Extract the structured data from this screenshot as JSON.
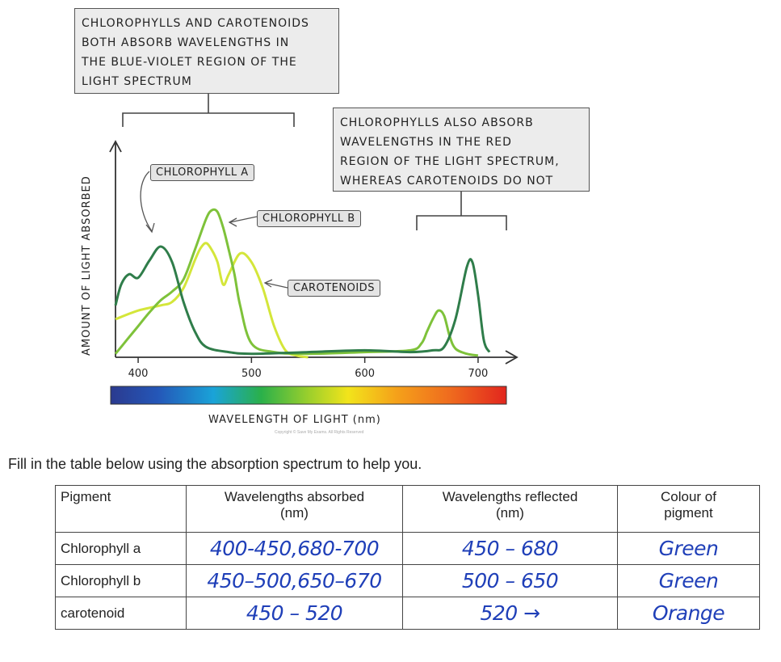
{
  "figure": {
    "annotation_blue_violet": "CHLOROPHYLLS AND CAROTENOIDS\nBOTH ABSORB WAVELENGTHS IN\nTHE BLUE-VIOLET REGION OF THE\nLIGHT SPECTRUM",
    "annotation_red": "CHLOROPHYLLS ALSO ABSORB\nWAVELENGTHS IN THE RED\nREGION OF THE LIGHT SPECTRUM,\nWHEREAS CAROTENOIDS DO NOT",
    "label_chl_a": "CHLOROPHYLL A",
    "label_chl_b": "CHLOROPHYLL B",
    "label_carotenoids": "CAROTENOIDS",
    "copyright": "Copyright © Save My Exams. All Rights Reserved"
  },
  "chart_data": {
    "type": "line",
    "xlabel": "WAVELENGTH OF LIGHT (nm)",
    "ylabel": "AMOUNT OF LIGHT ABSORBED",
    "xticks": [
      400,
      500,
      600,
      700
    ],
    "xlim": [
      380,
      720
    ],
    "ylim": [
      0,
      1
    ],
    "colors": {
      "chlorophyll_a": "#2f7d4a",
      "chlorophyll_b": "#7ec23a",
      "carotenoids": "#d4e63a"
    },
    "series": [
      {
        "name": "CHLOROPHYLL A",
        "x": [
          380,
          385,
          392,
          400,
          410,
          420,
          430,
          440,
          450,
          460,
          480,
          500,
          550,
          600,
          640,
          660,
          670,
          680,
          690,
          695,
          700,
          705,
          710
        ],
        "y": [
          0.3,
          0.42,
          0.48,
          0.46,
          0.56,
          0.64,
          0.55,
          0.32,
          0.15,
          0.06,
          0.03,
          0.02,
          0.03,
          0.04,
          0.03,
          0.04,
          0.06,
          0.22,
          0.52,
          0.55,
          0.36,
          0.1,
          0.03
        ]
      },
      {
        "name": "CHLOROPHYLL B",
        "x": [
          380,
          390,
          400,
          410,
          420,
          430,
          440,
          450,
          460,
          465,
          470,
          475,
          480,
          485,
          490,
          500,
          520,
          550,
          600,
          640,
          650,
          655,
          660,
          665,
          670,
          675,
          680,
          690,
          700
        ],
        "y": [
          0.02,
          0.1,
          0.18,
          0.26,
          0.33,
          0.38,
          0.45,
          0.62,
          0.8,
          0.85,
          0.84,
          0.75,
          0.62,
          0.48,
          0.3,
          0.08,
          0.03,
          0.02,
          0.03,
          0.04,
          0.08,
          0.15,
          0.22,
          0.27,
          0.24,
          0.12,
          0.05,
          0.02,
          0.01
        ]
      },
      {
        "name": "CAROTENOIDS",
        "x": [
          380,
          400,
          420,
          430,
          440,
          450,
          455,
          460,
          465,
          470,
          475,
          480,
          490,
          500,
          510,
          520,
          530,
          540,
          550
        ],
        "y": [
          0.22,
          0.27,
          0.3,
          0.32,
          0.4,
          0.56,
          0.63,
          0.66,
          0.62,
          0.55,
          0.42,
          0.48,
          0.6,
          0.55,
          0.4,
          0.18,
          0.04,
          0.01,
          0.0
        ]
      }
    ]
  },
  "instruction": "Fill in the table below using the absorption spectrum to help you.",
  "table": {
    "headers": {
      "pigment": "Pigment",
      "absorbed": "Wavelengths absorbed\n(nm)",
      "reflected": "Wavelengths reflected\n(nm)",
      "colour": "Colour of\npigment"
    },
    "rows": [
      {
        "pigment": "Chlorophyll a",
        "absorbed": "400-450,680-700",
        "reflected": "450 – 680",
        "colour": "Green"
      },
      {
        "pigment": "Chlorophyll b",
        "absorbed": "450–500,650–670",
        "reflected": "500 – 650",
        "colour": "Green"
      },
      {
        "pigment": "carotenoid",
        "absorbed": "450 – 520",
        "reflected": "520 →",
        "colour": "Orange"
      }
    ]
  }
}
